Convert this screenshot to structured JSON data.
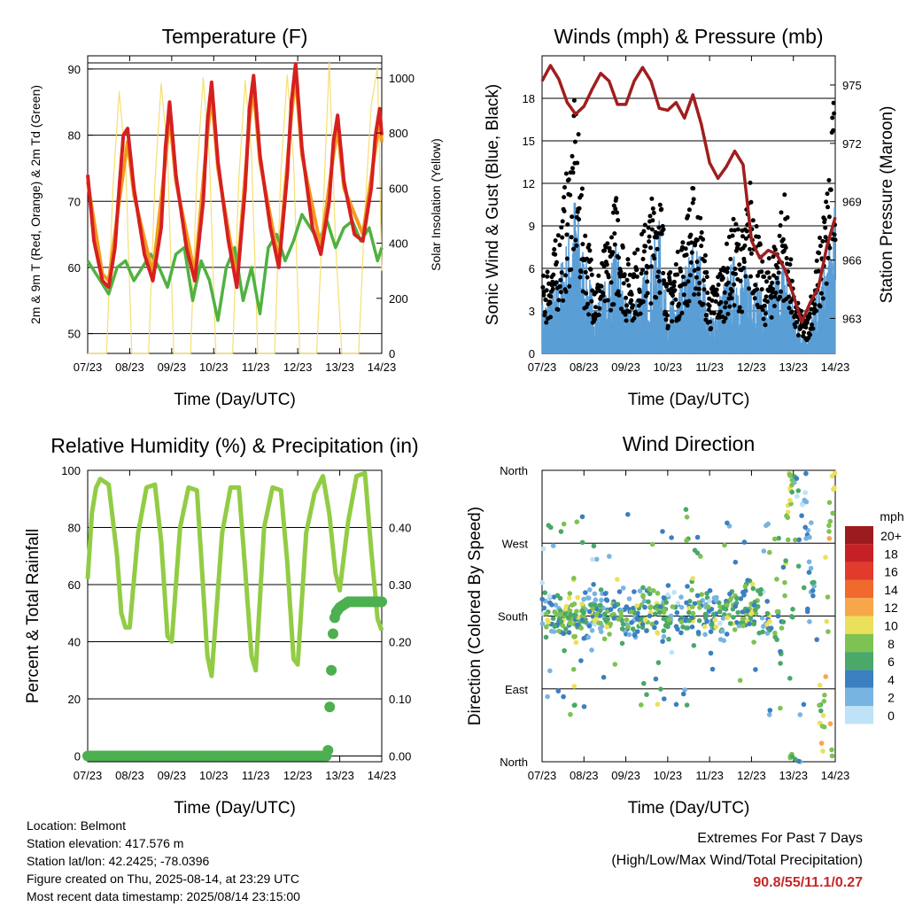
{
  "colors": {
    "temp_2m": "#d62020",
    "temp_9m": "#f39a1e",
    "dewpoint": "#4fb240",
    "solar": "#f5dc60",
    "wind": "#5b9ed6",
    "gust": "#000000",
    "pressure": "#a01e1e",
    "rh": "#92cc45",
    "rain": "#4caf50",
    "extremes_text": "#c62828"
  },
  "x_ticks": [
    "07/23",
    "08/23",
    "09/23",
    "10/23",
    "11/23",
    "12/23",
    "13/23",
    "14/23"
  ],
  "panels": {
    "temperature": {
      "title": "Temperature (F)",
      "xlabel": "Time (Day/UTC)",
      "ylabel_left": "2m & 9m T (Red, Orange) & 2m Td (Green)",
      "ylabel_right": "Solar Insolation (Yellow)",
      "left_ticks": [
        "50",
        "60",
        "70",
        "80",
        "90"
      ],
      "right_ticks": [
        "0",
        "200",
        "400",
        "600",
        "800",
        "1000"
      ]
    },
    "winds": {
      "title": "Winds (mph) & Pressure (mb)",
      "xlabel": "Time (Day/UTC)",
      "ylabel_left": "Sonic Wind & Gust (Blue, Black)",
      "ylabel_right": "Station Pressure (Maroon)",
      "left_ticks": [
        "0",
        "3",
        "6",
        "9",
        "12",
        "15",
        "18"
      ],
      "right_ticks": [
        "963",
        "966",
        "969",
        "972",
        "975"
      ]
    },
    "humidity": {
      "title": "Relative Humidity (%) & Precipitation (in)",
      "xlabel": "Time (Day/UTC)",
      "ylabel_left": "Percent & Total Rainfall",
      "left_ticks": [
        "0",
        "20",
        "40",
        "60",
        "80",
        "100"
      ],
      "right_ticks": [
        "0.00",
        "0.10",
        "0.20",
        "0.30",
        "0.40"
      ]
    },
    "direction": {
      "title": "Wind Direction",
      "xlabel": "Time (Day/UTC)",
      "ylabel_left": "Direction (Colored By Speed)",
      "left_ticks": [
        "North",
        "East",
        "South",
        "West",
        "North"
      ],
      "legend_title": "mph",
      "legend_labels": [
        "20+",
        "18",
        "16",
        "14",
        "12",
        "10",
        "8",
        "6",
        "4",
        "2",
        "0"
      ],
      "legend_colors": [
        "#9b1b1e",
        "#c62026",
        "#e23a2c",
        "#f06a2e",
        "#f7a64a",
        "#ebe05a",
        "#7ec253",
        "#4aa868",
        "#3b7fc0",
        "#78b4e2",
        "#bfe2f6"
      ]
    }
  },
  "info": {
    "location": "Location: Belmont",
    "elevation": "Station elevation: 417.576 m",
    "latlon": "Station lat/lon: 42.2425; -78.0396",
    "created": "Figure created on Thu, 2025-08-14, at 23:29 UTC",
    "recent": "Most recent data timestamp: 2025/08/14 23:15:00"
  },
  "extremes": {
    "title": "Extremes For Past 7 Days",
    "subtitle": "(High/Low/Max Wind/Total Precipitation)",
    "value": "90.8/55/11.1/0.27"
  },
  "chart_data": [
    {
      "type": "line",
      "title": "Temperature (F)",
      "xlabel": "Time (Day/UTC)",
      "ylabel": "2m & 9m T (Red, Orange) & 2m Td (Green)",
      "y2label": "Solar Insolation (Yellow)",
      "x_range_days": [
        7,
        14
      ],
      "ylim": [
        47,
        92
      ],
      "y2lim": [
        0,
        1080
      ],
      "series": [
        {
          "name": "2m T",
          "x": [
            7.0,
            7.15,
            7.35,
            7.5,
            7.65,
            7.75,
            7.85,
            7.95,
            8.1,
            8.35,
            8.55,
            8.75,
            8.85,
            8.95,
            9.1,
            9.35,
            9.55,
            9.75,
            9.85,
            9.95,
            10.1,
            10.35,
            10.55,
            10.75,
            10.85,
            10.95,
            11.1,
            11.35,
            11.55,
            11.75,
            11.85,
            11.95,
            12.1,
            12.35,
            12.55,
            12.75,
            12.85,
            12.95,
            13.1,
            13.35,
            13.55,
            13.75,
            13.85,
            13.95,
            14.0
          ],
          "y": [
            74,
            64,
            58,
            57,
            63,
            72,
            80,
            81,
            72,
            62,
            58,
            66,
            78,
            85,
            74,
            63,
            58,
            70,
            82,
            88,
            76,
            64,
            57,
            72,
            84,
            89,
            77,
            66,
            60,
            74,
            85,
            90.8,
            78,
            66,
            62,
            70,
            79,
            83,
            73,
            65,
            64,
            72,
            80,
            84,
            80
          ]
        },
        {
          "name": "9m T",
          "x": [
            7.0,
            7.35,
            7.5,
            7.75,
            7.95,
            8.1,
            8.55,
            8.85,
            8.95,
            9.1,
            9.55,
            9.85,
            9.95,
            10.1,
            10.55,
            10.85,
            10.95,
            11.1,
            11.55,
            11.85,
            11.95,
            12.1,
            12.55,
            12.85,
            12.95,
            13.1,
            13.55,
            13.85,
            13.95,
            14.0
          ],
          "y": [
            73,
            59,
            58,
            70,
            79,
            71,
            59,
            76,
            83,
            73,
            59,
            80,
            86,
            75,
            58,
            82,
            87,
            76,
            61,
            83,
            89,
            77,
            63,
            77,
            81,
            72,
            65,
            78,
            82,
            79
          ]
        },
        {
          "name": "2m Td",
          "x": [
            7.0,
            7.3,
            7.5,
            7.7,
            7.9,
            8.1,
            8.3,
            8.5,
            8.7,
            8.9,
            9.1,
            9.3,
            9.5,
            9.7,
            9.9,
            10.1,
            10.3,
            10.5,
            10.7,
            10.9,
            11.1,
            11.3,
            11.5,
            11.7,
            11.9,
            12.1,
            12.3,
            12.5,
            12.7,
            12.9,
            13.1,
            13.3,
            13.5,
            13.7,
            13.9,
            14.0
          ],
          "y": [
            61,
            58,
            56,
            60,
            61,
            58,
            60,
            62,
            60,
            57,
            62,
            63,
            55,
            61,
            58,
            52,
            60,
            63,
            55,
            60,
            53,
            63,
            65,
            61,
            64,
            68,
            66,
            64,
            67,
            63,
            66,
            67,
            64,
            66,
            61,
            63
          ]
        },
        {
          "name": "Solar Insolation",
          "x": [
            7.0,
            7.45,
            7.6,
            7.75,
            7.9,
            8.05,
            8.45,
            8.6,
            8.75,
            8.9,
            9.05,
            9.45,
            9.6,
            9.75,
            9.9,
            10.05,
            10.45,
            10.6,
            10.75,
            10.9,
            11.05,
            11.45,
            11.6,
            11.75,
            11.9,
            12.05,
            12.45,
            12.6,
            12.75,
            12.9,
            13.05,
            13.45,
            13.6,
            13.75,
            13.9,
            14.0
          ],
          "y": [
            0,
            0,
            600,
            950,
            700,
            0,
            0,
            620,
            980,
            720,
            0,
            0,
            650,
            1000,
            700,
            0,
            0,
            640,
            990,
            720,
            0,
            0,
            660,
            1010,
            700,
            0,
            0,
            500,
            1060,
            400,
            0,
            0,
            520,
            900,
            1040,
            300
          ]
        }
      ]
    },
    {
      "type": "line",
      "title": "Winds (mph) & Pressure (mb)",
      "xlabel": "Time (Day/UTC)",
      "ylabel": "Sonic Wind & Gust (Blue, Black)",
      "y2label": "Station Pressure (Maroon)",
      "x_range_days": [
        7,
        14
      ],
      "ylim": [
        0,
        21
      ],
      "y2lim": [
        961.2,
        976.5
      ],
      "series": [
        {
          "name": "Sonic Wind",
          "x": [
            7.0,
            7.3,
            7.6,
            7.8,
            8.0,
            8.3,
            8.6,
            8.8,
            9.0,
            9.3,
            9.6,
            9.8,
            10.0,
            10.3,
            10.6,
            10.8,
            11.0,
            11.3,
            11.6,
            11.8,
            12.0,
            12.3,
            12.6,
            12.8,
            13.0,
            13.3,
            13.6,
            13.8,
            14.0
          ],
          "y": [
            3,
            4,
            7,
            10,
            6,
            3,
            5,
            7,
            3,
            4,
            6,
            8,
            3,
            4,
            7,
            6,
            2,
            4,
            6,
            5,
            6,
            3,
            5,
            6,
            3,
            1,
            4,
            6,
            9
          ]
        },
        {
          "name": "Gust",
          "x": [
            7.0,
            7.3,
            7.6,
            7.8,
            8.0,
            8.3,
            8.6,
            8.8,
            9.0,
            9.3,
            9.6,
            9.8,
            10.0,
            10.3,
            10.6,
            10.8,
            11.0,
            11.3,
            11.6,
            11.8,
            12.0,
            12.3,
            12.6,
            12.8,
            13.0,
            13.3,
            13.6,
            13.8,
            14.0
          ],
          "y": [
            5,
            7,
            12,
            17,
            9,
            5,
            8,
            11,
            6,
            7,
            10,
            12,
            5,
            7,
            11,
            9,
            4,
            6,
            9,
            8,
            12,
            5,
            8,
            11,
            4,
            2,
            7,
            11,
            18
          ]
        },
        {
          "name": "Station Pressure",
          "x": [
            7.0,
            7.2,
            7.4,
            7.6,
            7.8,
            8.0,
            8.2,
            8.4,
            8.6,
            8.8,
            9.0,
            9.2,
            9.4,
            9.6,
            9.8,
            10.0,
            10.2,
            10.4,
            10.6,
            10.8,
            11.0,
            11.2,
            11.4,
            11.6,
            11.8,
            12.0,
            12.2,
            12.4,
            12.6,
            12.8,
            13.0,
            13.2,
            13.4,
            13.6,
            13.8,
            14.0
          ],
          "y": [
            975.2,
            976.0,
            975.3,
            974.1,
            973.5,
            973.9,
            974.8,
            975.6,
            975.2,
            974.0,
            974.0,
            975.2,
            975.9,
            975.2,
            973.8,
            973.7,
            974.1,
            973.3,
            974.5,
            973.0,
            971.0,
            970.2,
            970.8,
            971.6,
            970.9,
            967.0,
            966.1,
            966.5,
            966.3,
            965.5,
            964.2,
            962.8,
            963.8,
            964.6,
            966.7,
            968.2
          ]
        }
      ]
    },
    {
      "type": "line",
      "title": "Relative Humidity (%) & Precipitation (in)",
      "xlabel": "Time (Day/UTC)",
      "ylabel": "Percent & Total Rainfall",
      "x_range_days": [
        7,
        14
      ],
      "ylim": [
        -2,
        100
      ],
      "y2lim": [
        -0.01,
        0.5
      ],
      "series": [
        {
          "name": "Relative Humidity",
          "x": [
            7.0,
            7.1,
            7.2,
            7.3,
            7.5,
            7.7,
            7.8,
            7.9,
            8.0,
            8.2,
            8.4,
            8.6,
            8.75,
            8.9,
            9.0,
            9.2,
            9.4,
            9.6,
            9.7,
            9.85,
            9.95,
            10.2,
            10.4,
            10.6,
            10.75,
            10.9,
            11.0,
            11.2,
            11.4,
            11.6,
            11.75,
            11.9,
            12.0,
            12.2,
            12.4,
            12.6,
            12.75,
            12.9,
            13.0,
            13.2,
            13.4,
            13.6,
            13.75,
            13.9,
            14.0
          ],
          "y": [
            62,
            85,
            94,
            97,
            95,
            70,
            50,
            45,
            45,
            78,
            94,
            95,
            75,
            42,
            40,
            80,
            94,
            93,
            70,
            35,
            28,
            78,
            94,
            94,
            65,
            35,
            30,
            80,
            94,
            93,
            68,
            34,
            32,
            78,
            92,
            98,
            85,
            64,
            58,
            82,
            98,
            99,
            72,
            48,
            44
          ]
        },
        {
          "name": "Total Precipitation",
          "x": [
            7.0,
            12.7,
            12.72,
            12.75,
            12.8,
            12.85,
            12.9,
            13.0,
            13.2,
            14.0
          ],
          "y": [
            0.0,
            0.0,
            0.01,
            0.07,
            0.15,
            0.23,
            0.25,
            0.26,
            0.27,
            0.27
          ]
        }
      ]
    },
    {
      "type": "scatter",
      "title": "Wind Direction",
      "xlabel": "Time (Day/UTC)",
      "ylabel": "Direction (Colored By Speed)",
      "x_range_days": [
        7,
        14
      ],
      "ylim_degrees": [
        0,
        360
      ],
      "y_categories": [
        "North",
        "East",
        "South",
        "West",
        "North"
      ],
      "color_scale": "mph",
      "series": [
        {
          "name": "Direction",
          "x": [
            7.1,
            7.4,
            7.6,
            7.8,
            8.0,
            8.3,
            8.5,
            8.8,
            9.0,
            9.3,
            9.5,
            9.8,
            10.0,
            10.3,
            10.6,
            10.8,
            11.0,
            11.3,
            11.5,
            11.8,
            12.0,
            12.3,
            12.5,
            12.7,
            12.9,
            13.1,
            13.3,
            13.5,
            13.7,
            13.9
          ],
          "y": [
            180,
            185,
            180,
            175,
            180,
            190,
            180,
            200,
            185,
            180,
            190,
            175,
            180,
            185,
            200,
            180,
            185,
            175,
            180,
            190,
            200,
            180,
            190,
            140,
            340,
            350,
            300,
            200,
            10,
            355
          ],
          "speed": [
            3,
            5,
            6,
            9,
            4,
            3,
            5,
            7,
            3,
            4,
            6,
            8,
            3,
            4,
            7,
            6,
            2,
            4,
            6,
            5,
            8,
            3,
            5,
            6,
            9,
            3,
            2,
            4,
            9,
            10
          ]
        }
      ]
    }
  ]
}
